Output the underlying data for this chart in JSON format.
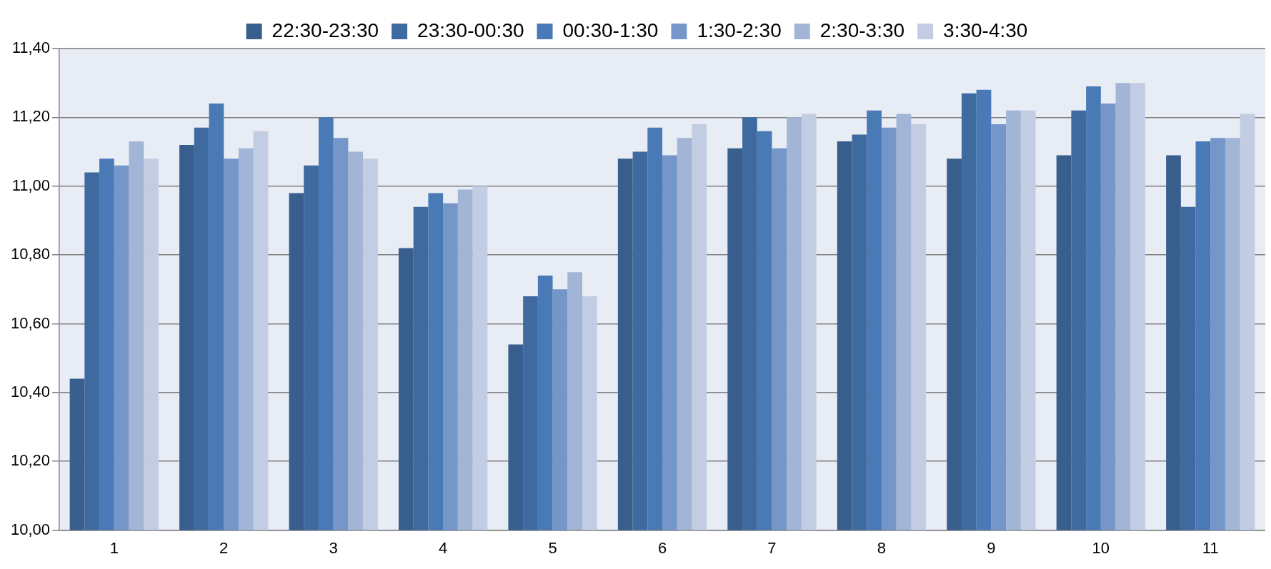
{
  "chart_data": {
    "type": "bar",
    "categories": [
      "1",
      "2",
      "3",
      "4",
      "5",
      "6",
      "7",
      "8",
      "9",
      "10",
      "11"
    ],
    "series": [
      {
        "name": "22:30-23:30",
        "color": "#375e8c",
        "values": [
          10.44,
          11.12,
          10.98,
          10.82,
          10.54,
          11.08,
          11.11,
          11.13,
          11.08,
          11.09,
          11.09
        ]
      },
      {
        "name": "23:30-00:30",
        "color": "#3f6aa0",
        "values": [
          11.04,
          11.17,
          11.06,
          10.94,
          10.68,
          11.1,
          11.2,
          11.15,
          11.27,
          11.22,
          10.94
        ]
      },
      {
        "name": "00:30-1:30",
        "color": "#4a7ab5",
        "values": [
          11.08,
          11.24,
          11.2,
          10.98,
          10.74,
          11.17,
          11.16,
          11.22,
          11.28,
          11.29,
          11.13
        ]
      },
      {
        "name": "1:30-2:30",
        "color": "#7596c8",
        "values": [
          11.06,
          11.08,
          11.14,
          10.95,
          10.7,
          11.09,
          11.11,
          11.17,
          11.18,
          11.24,
          11.14
        ]
      },
      {
        "name": "2:30-3:30",
        "color": "#a3b5d6",
        "values": [
          11.13,
          11.11,
          11.1,
          10.99,
          10.75,
          11.14,
          11.2,
          11.21,
          11.22,
          11.3,
          11.14
        ]
      },
      {
        "name": "3:30-4:30",
        "color": "#c2cde3",
        "values": [
          11.08,
          11.16,
          11.08,
          11.0,
          10.68,
          11.18,
          11.21,
          11.18,
          11.22,
          11.3,
          11.21
        ]
      }
    ],
    "ylim": [
      10,
      11.4
    ],
    "yticks": [
      {
        "value": 10,
        "label": "10,00"
      },
      {
        "value": 10.2,
        "label": "10,20"
      },
      {
        "value": 10.4,
        "label": "10,40"
      },
      {
        "value": 10.6,
        "label": "10,60"
      },
      {
        "value": 10.8,
        "label": "10,80"
      },
      {
        "value": 11,
        "label": "11,00"
      },
      {
        "value": 11.2,
        "label": "11,20"
      },
      {
        "value": 11.4,
        "label": "11,40"
      }
    ],
    "grid": "y",
    "legend": "top"
  }
}
